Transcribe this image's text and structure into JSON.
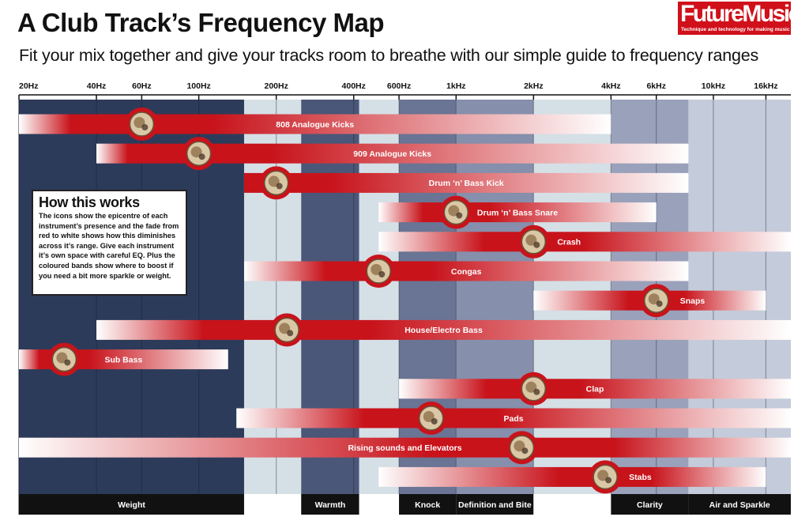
{
  "header": {
    "title": "A Club Track’s Frequency Map",
    "subtitle": "Fit your mix together and give your tracks room to breathe with our simple guide to frequency ranges"
  },
  "logo": {
    "name": "FutureMusic",
    "tagline": "Technique and technology for making music",
    "color": "#d0101a"
  },
  "info_box": {
    "heading": "How this works",
    "body": "The icons show the epicentre of each instrument’s presence and the fade from red to white shows how this diminishes across it’s range. Give each instrument it’s own space with careful EQ. Plus the coloured bands show where to boost if you need a bit more sparkle or weight."
  },
  "chart_data": {
    "type": "frequency-range-map",
    "x_scale": "log",
    "x_unit": "Hz",
    "xlim": [
      20,
      20000
    ],
    "ticks": [
      {
        "label": "20Hz",
        "value": 20
      },
      {
        "label": "40Hz",
        "value": 40
      },
      {
        "label": "60Hz",
        "value": 60
      },
      {
        "label": "100Hz",
        "value": 100
      },
      {
        "label": "200Hz",
        "value": 200
      },
      {
        "label": "400Hz",
        "value": 400
      },
      {
        "label": "600Hz",
        "value": 600
      },
      {
        "label": "1kHz",
        "value": 1000
      },
      {
        "label": "2kHz",
        "value": 2000
      },
      {
        "label": "4kHz",
        "value": 4000
      },
      {
        "label": "6kHz",
        "value": 6000
      },
      {
        "label": "10kHz",
        "value": 10000
      },
      {
        "label": "16kHz",
        "value": 16000
      }
    ],
    "bands": [
      {
        "label": "Weight",
        "from": 20,
        "to": 150,
        "color": "#2d3b5a"
      },
      {
        "label": "",
        "from": 150,
        "to": 250,
        "color": "#d5dfe6"
      },
      {
        "label": "Warmth",
        "from": 250,
        "to": 420,
        "color": "#4a5778"
      },
      {
        "label": "",
        "from": 420,
        "to": 600,
        "color": "#d5dfe6"
      },
      {
        "label": "Knock",
        "from": 600,
        "to": 1000,
        "color": "#6a7494"
      },
      {
        "label": "Definition and Bite",
        "from": 1000,
        "to": 2000,
        "color": "#868fab"
      },
      {
        "label": "",
        "from": 2000,
        "to": 4000,
        "color": "#d5dfe6"
      },
      {
        "label": "Clarity",
        "from": 4000,
        "to": 8000,
        "color": "#9aa1bb"
      },
      {
        "label": "Air and Sparkle",
        "from": 8000,
        "to": 20000,
        "color": "#c4cbda"
      }
    ],
    "instruments": [
      {
        "name": "808 Analogue Kicks",
        "from": 20,
        "to": 4000,
        "peak": 60,
        "icon": "808-drum-machine-icon"
      },
      {
        "name": "909 Analogue Kicks",
        "from": 40,
        "to": 8000,
        "peak": 100,
        "icon": "909-drum-machine-icon"
      },
      {
        "name": "Drum ‘n’ Bass Kick",
        "from": 150,
        "to": 8000,
        "peak": 200,
        "icon": "kick-drum-icon"
      },
      {
        "name": "Drum ‘n’ Bass Snare",
        "from": 500,
        "to": 6000,
        "peak": 1000,
        "icon": "snare-drum-icon"
      },
      {
        "name": "Crash",
        "from": 500,
        "to": 20000,
        "peak": 2000,
        "icon": "cymbal-icon"
      },
      {
        "name": "Congas",
        "from": 150,
        "to": 8000,
        "peak": 500,
        "icon": "conga-icon"
      },
      {
        "name": "Snaps",
        "from": 2000,
        "to": 16000,
        "peak": 6000,
        "icon": "finger-snap-icon"
      },
      {
        "name": "House/Electro Bass",
        "from": 40,
        "to": 20000,
        "peak": 220,
        "icon": "bass-cabinet-icon"
      },
      {
        "name": "Sub Bass",
        "from": 20,
        "to": 130,
        "peak": 30,
        "icon": "speaker-icon"
      },
      {
        "name": "Clap",
        "from": 600,
        "to": 20000,
        "peak": 2000,
        "icon": "hand-clap-icon"
      },
      {
        "name": "Pads",
        "from": 140,
        "to": 20000,
        "peak": 800,
        "icon": "synth-pad-icon"
      },
      {
        "name": "Rising sounds and Elevators",
        "from": 20,
        "to": 20000,
        "peak": 1800,
        "icon": "waveform-display-icon"
      },
      {
        "name": "Stabs",
        "from": 500,
        "to": 16000,
        "peak": 3800,
        "icon": "brass-horn-icon"
      }
    ]
  }
}
